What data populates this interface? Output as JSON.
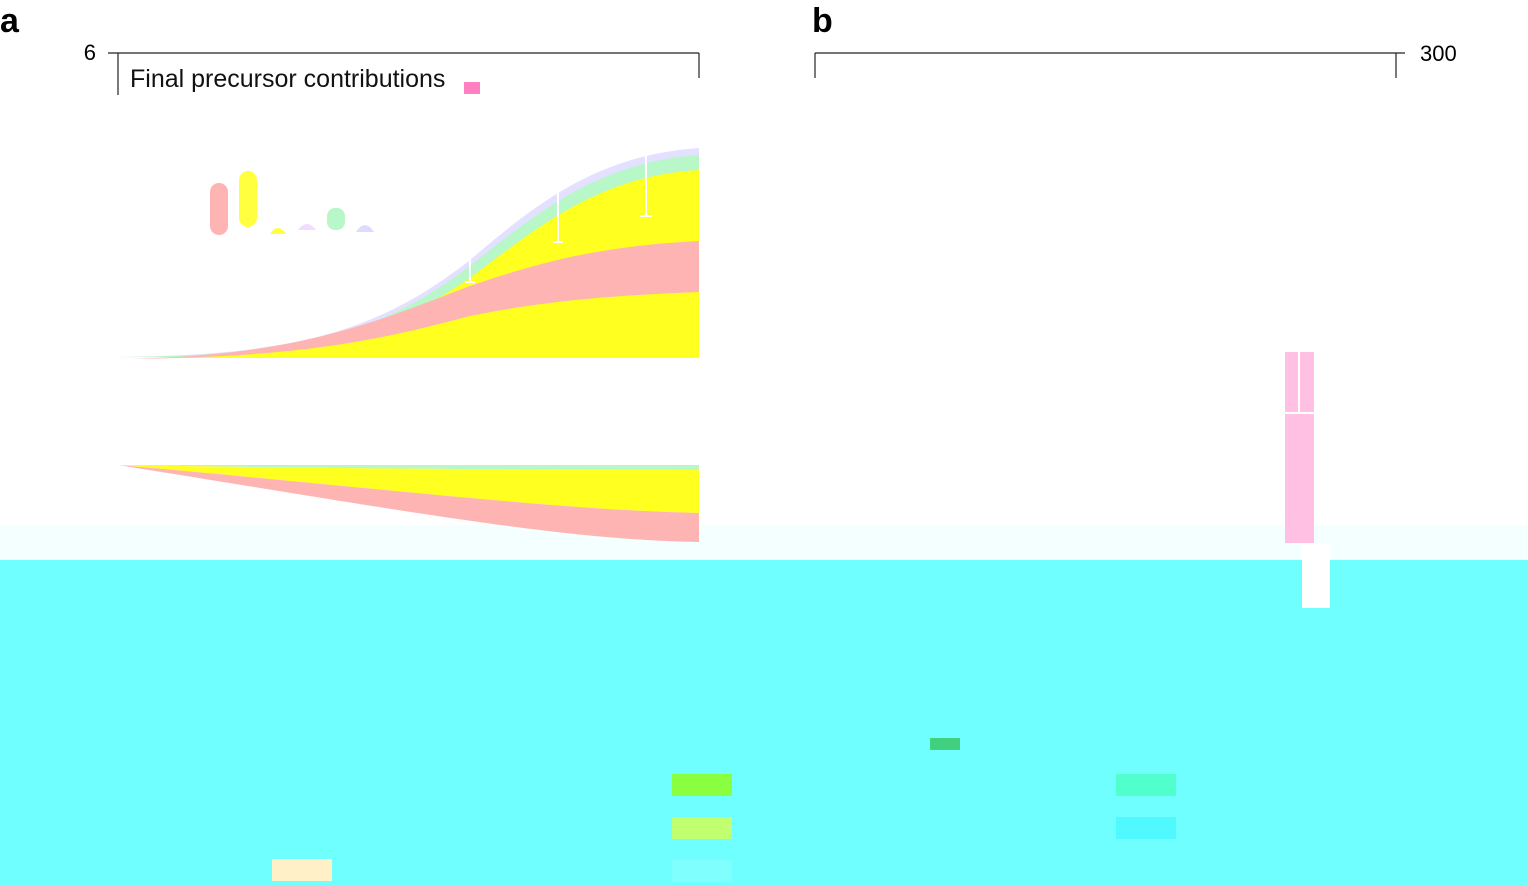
{
  "panel_a": {
    "label": "a",
    "y_tick": "6",
    "title": "Final precursor contributions"
  },
  "panel_b": {
    "label": "b",
    "y_tick": "300"
  }
}
